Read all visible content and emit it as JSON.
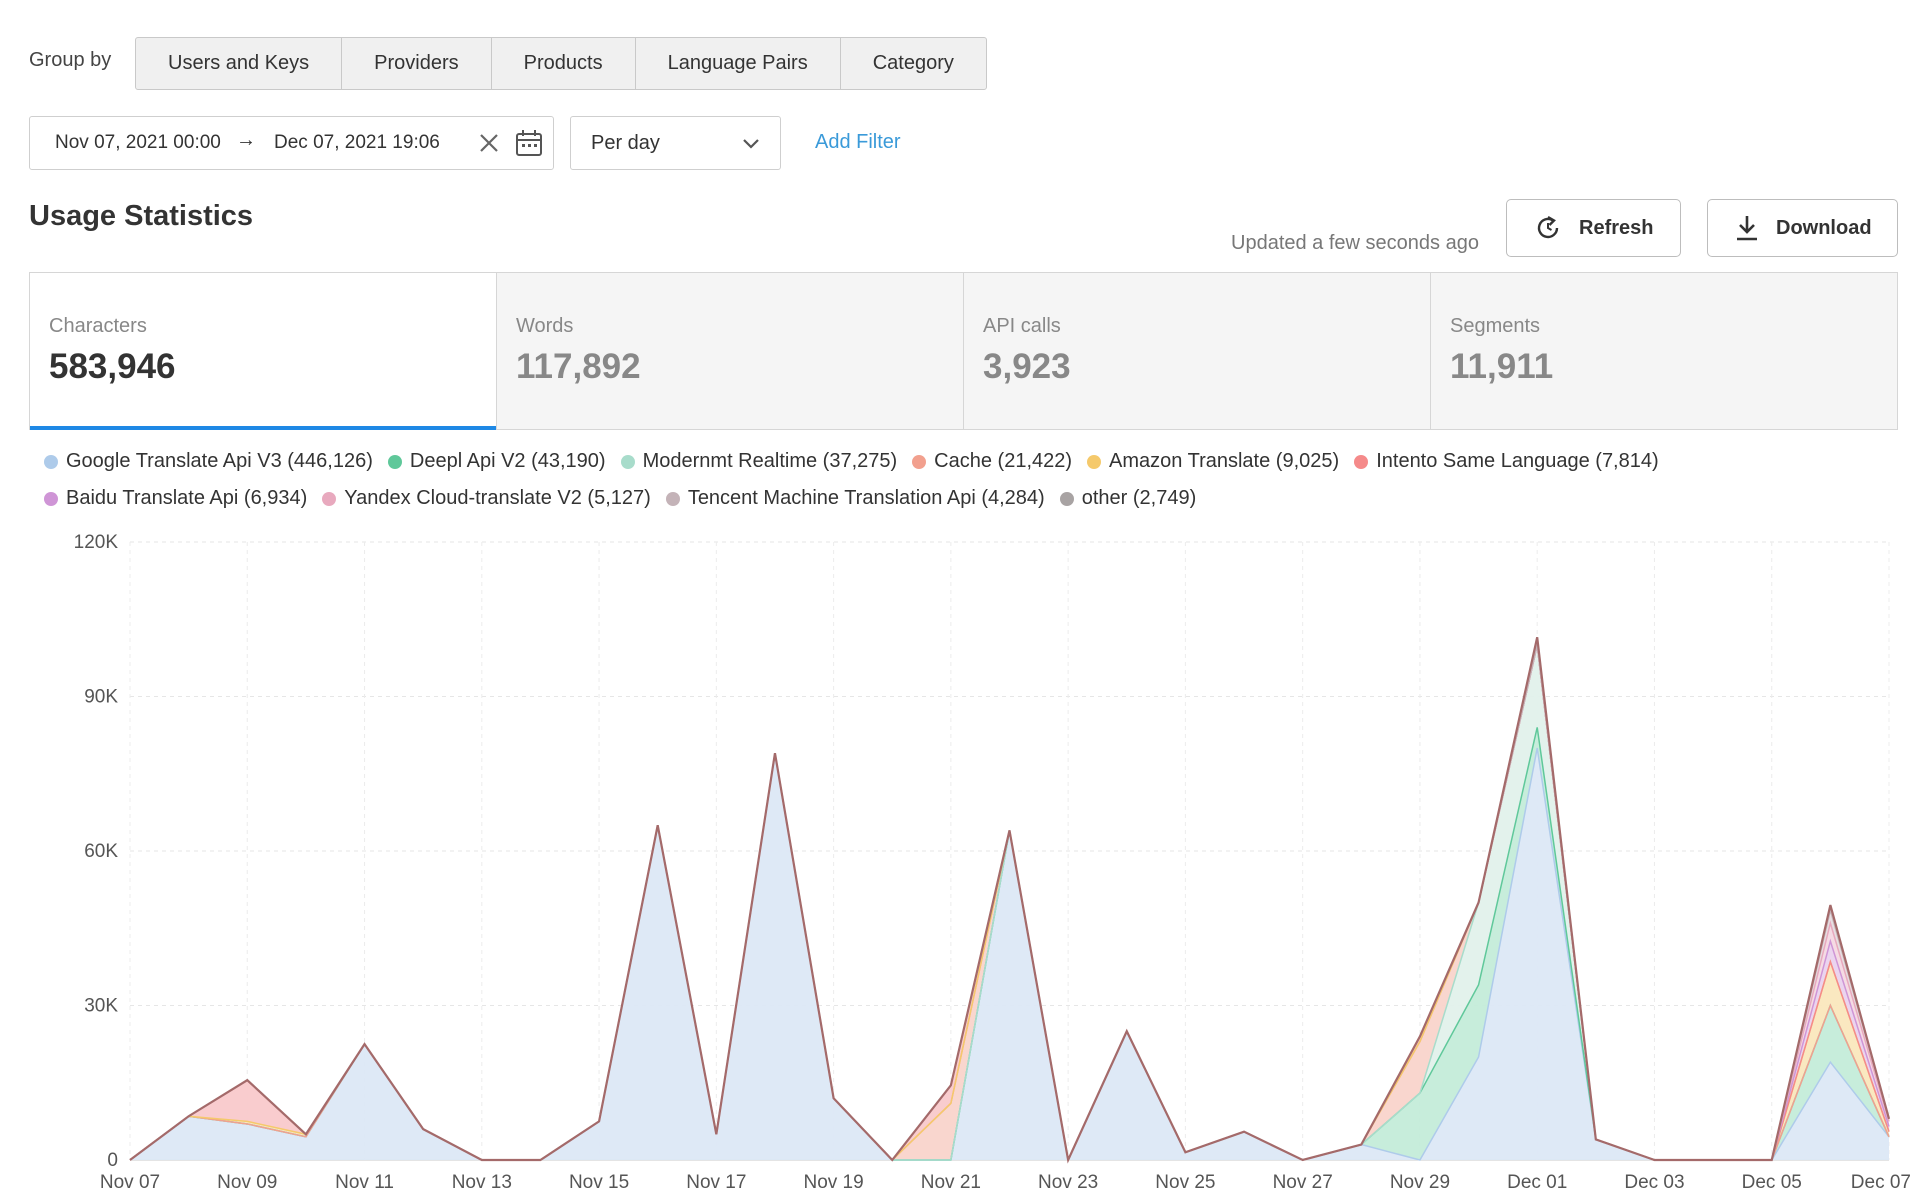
{
  "group_by": {
    "label": "Group by",
    "tabs": [
      "Users and Keys",
      "Providers",
      "Products",
      "Language Pairs",
      "Category"
    ]
  },
  "filters": {
    "date_start": "Nov 07, 2021 00:00",
    "date_arrow": "→",
    "date_end": "Dec 07, 2021 19:06",
    "period": "Per day",
    "add_filter": "Add Filter"
  },
  "header": {
    "title": "Usage Statistics",
    "updated": "Updated a few seconds ago",
    "refresh_label": "Refresh",
    "download_label": "Download"
  },
  "metrics": [
    {
      "label": "Characters",
      "value": "583,946",
      "active": true
    },
    {
      "label": "Words",
      "value": "117,892",
      "active": false
    },
    {
      "label": "API calls",
      "value": "3,923",
      "active": false
    },
    {
      "label": "Segments",
      "value": "11,911",
      "active": false
    }
  ],
  "colors": {
    "accent": "#1e88e5",
    "link": "#3a9ad9",
    "outline": "#a46a6a"
  },
  "chart_data": {
    "type": "area",
    "stacked": true,
    "ylim": [
      0,
      120000
    ],
    "yticks": [
      0,
      30000,
      60000,
      90000,
      120000
    ],
    "ytick_labels": [
      "0",
      "30K",
      "60K",
      "90K",
      "120K"
    ],
    "x": [
      "Nov 07",
      "Nov 08",
      "Nov 09",
      "Nov 10",
      "Nov 11",
      "Nov 12",
      "Nov 13",
      "Nov 14",
      "Nov 15",
      "Nov 16",
      "Nov 17",
      "Nov 18",
      "Nov 19",
      "Nov 20",
      "Nov 21",
      "Nov 22",
      "Nov 23",
      "Nov 24",
      "Nov 25",
      "Nov 26",
      "Nov 27",
      "Nov 28",
      "Nov 29",
      "Nov 30",
      "Dec 01",
      "Dec 02",
      "Dec 03",
      "Dec 04",
      "Dec 05",
      "Dec 06",
      "Dec 07"
    ],
    "xtick_labels": [
      "Nov 07",
      "Nov 09",
      "Nov 11",
      "Nov 13",
      "Nov 15",
      "Nov 17",
      "Nov 19",
      "Nov 21",
      "Nov 23",
      "Nov 25",
      "Nov 27",
      "Nov 29",
      "Dec 01",
      "Dec 03",
      "Dec 05",
      "Dec 07"
    ],
    "series": [
      {
        "name": "Google Translate Api V3",
        "total": "446,126",
        "color": "#aecbea",
        "fill": "#dce8f6",
        "values": [
          0,
          8500,
          7000,
          4500,
          22500,
          6000,
          0,
          0,
          7500,
          65000,
          5000,
          79000,
          12000,
          0,
          0,
          64000,
          0,
          25000,
          1500,
          5500,
          0,
          3000,
          0,
          20000,
          80000,
          4000,
          0,
          0,
          0,
          19000,
          4500
        ]
      },
      {
        "name": "Deepl Api V2",
        "total": "43,190",
        "color": "#5fc89a",
        "fill": "#c4ecd9",
        "values": [
          0,
          0,
          0,
          0,
          0,
          0,
          0,
          0,
          0,
          0,
          0,
          0,
          0,
          0,
          0,
          0,
          0,
          0,
          0,
          0,
          0,
          0,
          13000,
          14000,
          4000,
          0,
          0,
          0,
          0,
          11000,
          0
        ]
      },
      {
        "name": "Modernmt Realtime",
        "total": "37,275",
        "color": "#a8dccb",
        "fill": "#e1f1eb",
        "values": [
          0,
          0,
          0,
          0,
          0,
          0,
          0,
          0,
          0,
          0,
          0,
          0,
          0,
          0,
          0,
          0,
          0,
          0,
          0,
          0,
          0,
          0,
          0,
          16000,
          16000,
          0,
          0,
          0,
          0,
          0,
          0
        ]
      },
      {
        "name": "Cache",
        "total": "21,422",
        "color": "#f2a08e",
        "fill": "#f9d4cb",
        "values": [
          0,
          0,
          0,
          0,
          0,
          0,
          0,
          0,
          0,
          0,
          0,
          0,
          0,
          0,
          11000,
          0,
          0,
          0,
          0,
          0,
          0,
          0,
          10000,
          0,
          0,
          0,
          0,
          0,
          0,
          0,
          0
        ]
      },
      {
        "name": "Amazon Translate",
        "total": "9,025",
        "color": "#f5c96b",
        "fill": "#fae7bd",
        "values": [
          0,
          0,
          500,
          500,
          0,
          0,
          0,
          0,
          0,
          0,
          0,
          0,
          0,
          0,
          0,
          0,
          0,
          0,
          0,
          0,
          0,
          0,
          0,
          0,
          0,
          0,
          0,
          0,
          0,
          8500,
          1000
        ]
      },
      {
        "name": "Intento Same Language",
        "total": "7,814",
        "color": "#f58a8a",
        "fill": "#f9c9cb",
        "values": [
          0,
          0,
          8000,
          0,
          0,
          0,
          0,
          0,
          0,
          0,
          0,
          0,
          0,
          0,
          3500,
          0,
          0,
          0,
          0,
          0,
          0,
          0,
          1000,
          0,
          0,
          0,
          0,
          0,
          0,
          0,
          0
        ]
      },
      {
        "name": "Baidu Translate Api",
        "total": "6,934",
        "color": "#cf95d6",
        "fill": "#ead2ee",
        "values": [
          0,
          0,
          0,
          0,
          0,
          0,
          0,
          0,
          0,
          0,
          0,
          0,
          0,
          0,
          0,
          0,
          0,
          0,
          0,
          0,
          0,
          0,
          0,
          0,
          0,
          0,
          0,
          0,
          0,
          4000,
          1000
        ]
      },
      {
        "name": "Yandex Cloud-translate V2",
        "total": "5,127",
        "color": "#e8a9be",
        "fill": "#f4d9e3",
        "values": [
          0,
          0,
          0,
          0,
          0,
          0,
          0,
          0,
          0,
          0,
          0,
          0,
          0,
          0,
          0,
          0,
          0,
          0,
          0,
          0,
          0,
          0,
          0,
          0,
          0,
          0,
          0,
          0,
          0,
          3500,
          1000
        ]
      },
      {
        "name": "Tencent Machine Translation Api",
        "total": "4,284",
        "color": "#c4b3b8",
        "fill": "#e6dde0",
        "values": [
          0,
          0,
          0,
          0,
          0,
          0,
          0,
          0,
          0,
          0,
          0,
          0,
          0,
          0,
          0,
          0,
          0,
          0,
          0,
          0,
          0,
          0,
          0,
          0,
          0,
          0,
          0,
          0,
          0,
          2500,
          500
        ]
      },
      {
        "name": "other",
        "total": "2,749",
        "color": "#a8a3a3",
        "fill": "#d8d5d5",
        "values": [
          0,
          0,
          0,
          0,
          0,
          0,
          0,
          0,
          0,
          0,
          0,
          0,
          0,
          0,
          0,
          0,
          0,
          0,
          0,
          0,
          0,
          0,
          0,
          0,
          1500,
          0,
          0,
          0,
          0,
          1000,
          0
        ]
      }
    ]
  }
}
